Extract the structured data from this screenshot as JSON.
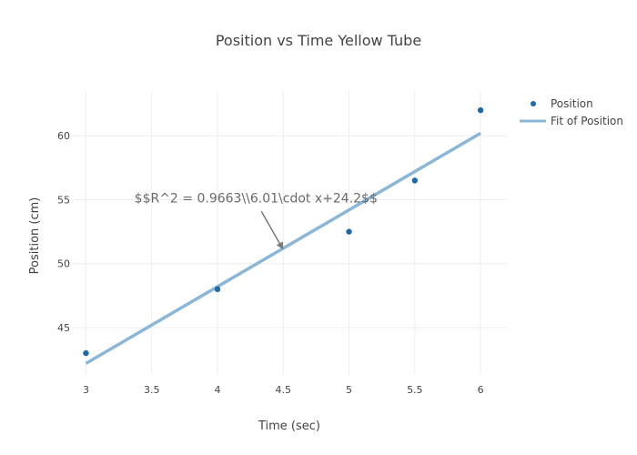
{
  "chart_data": {
    "type": "scatter",
    "title": "Position vs Time Yellow Tube",
    "xlabel": "Time (sec)",
    "ylabel": "Position (cm)",
    "xlim": [
      2.9,
      6.2
    ],
    "ylim": [
      41.3,
      63.5
    ],
    "x_ticks": [
      3,
      3.5,
      4,
      4.5,
      5,
      5.5,
      6
    ],
    "x_tick_labels": [
      "3",
      "3.5",
      "4",
      "4.5",
      "5",
      "5.5",
      "6"
    ],
    "y_ticks": [
      45,
      50,
      55,
      60
    ],
    "y_tick_labels": [
      "45",
      "50",
      "55",
      "60"
    ],
    "grid": true,
    "legend_position": "top-right",
    "series": [
      {
        "name": "Position",
        "kind": "markers",
        "color": "#1f6aa5",
        "x": [
          3,
          4,
          5,
          5.5,
          6
        ],
        "y": [
          43,
          48,
          52.5,
          56.5,
          62
        ]
      },
      {
        "name": "Fit of Position",
        "kind": "line",
        "color": "#8cb6d6",
        "x": [
          3,
          6
        ],
        "y": [
          42.2,
          60.2
        ]
      }
    ],
    "annotation": {
      "text": "$$R^2 = 0.9663\\\\6.01\\cdot x+24.2$$",
      "x": 4.5,
      "y": 51.1
    }
  }
}
